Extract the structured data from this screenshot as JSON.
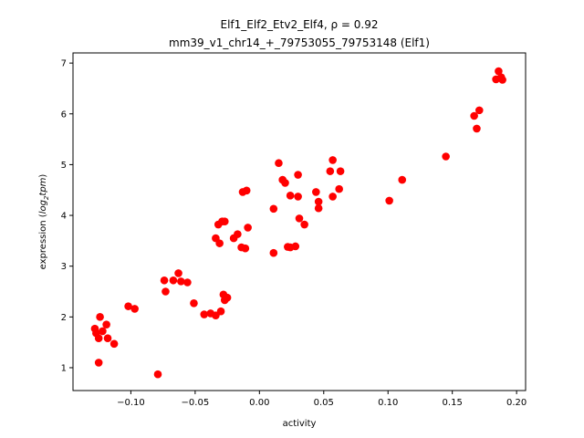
{
  "chart_data": {
    "type": "scatter",
    "title_line1": "Elf1_Elf2_Etv2_Elf4, ρ = 0.92",
    "title_line2": "mm39_v1_chr14_+_79753055_79753148 (Elf1)",
    "xlabel": "activity",
    "ylabel_prefix": "expression (",
    "ylabel_italic": "log",
    "ylabel_sub": "2",
    "ylabel_italic2": "tpm",
    "ylabel_suffix": ")",
    "xlim": [
      -0.145,
      0.207
    ],
    "ylim": [
      0.55,
      7.2
    ],
    "xticks": [
      -0.1,
      -0.05,
      0.0,
      0.05,
      0.1,
      0.15,
      0.2
    ],
    "xtick_labels": [
      "−0.10",
      "−0.05",
      "0.00",
      "0.05",
      "0.10",
      "0.15",
      "0.20"
    ],
    "yticks": [
      1,
      2,
      3,
      4,
      5,
      6,
      7
    ],
    "ytick_labels": [
      "1",
      "2",
      "3",
      "4",
      "5",
      "6",
      "7"
    ],
    "marker_color": "#ff0000",
    "grid": false,
    "points": [
      {
        "x": -0.128,
        "y": 1.77
      },
      {
        "x": -0.127,
        "y": 1.68
      },
      {
        "x": -0.125,
        "y": 1.58
      },
      {
        "x": -0.124,
        "y": 2.0
      },
      {
        "x": -0.122,
        "y": 1.72
      },
      {
        "x": -0.125,
        "y": 1.1
      },
      {
        "x": -0.119,
        "y": 1.85
      },
      {
        "x": -0.118,
        "y": 1.58
      },
      {
        "x": -0.113,
        "y": 1.47
      },
      {
        "x": -0.102,
        "y": 2.21
      },
      {
        "x": -0.097,
        "y": 2.16
      },
      {
        "x": -0.079,
        "y": 0.87
      },
      {
        "x": -0.074,
        "y": 2.72
      },
      {
        "x": -0.073,
        "y": 2.5
      },
      {
        "x": -0.067,
        "y": 2.72
      },
      {
        "x": -0.063,
        "y": 2.86
      },
      {
        "x": -0.061,
        "y": 2.7
      },
      {
        "x": -0.056,
        "y": 2.68
      },
      {
        "x": -0.051,
        "y": 2.27
      },
      {
        "x": -0.043,
        "y": 2.05
      },
      {
        "x": -0.038,
        "y": 2.07
      },
      {
        "x": -0.034,
        "y": 2.03
      },
      {
        "x": -0.03,
        "y": 2.11
      },
      {
        "x": -0.028,
        "y": 2.44
      },
      {
        "x": -0.027,
        "y": 2.33
      },
      {
        "x": -0.025,
        "y": 2.38
      },
      {
        "x": -0.034,
        "y": 3.55
      },
      {
        "x": -0.032,
        "y": 3.82
      },
      {
        "x": -0.031,
        "y": 3.45
      },
      {
        "x": -0.029,
        "y": 3.88
      },
      {
        "x": -0.027,
        "y": 3.88
      },
      {
        "x": -0.02,
        "y": 3.55
      },
      {
        "x": -0.017,
        "y": 3.63
      },
      {
        "x": -0.014,
        "y": 3.37
      },
      {
        "x": -0.011,
        "y": 3.35
      },
      {
        "x": -0.009,
        "y": 3.76
      },
      {
        "x": -0.013,
        "y": 4.46
      },
      {
        "x": -0.01,
        "y": 4.49
      },
      {
        "x": 0.011,
        "y": 4.13
      },
      {
        "x": 0.011,
        "y": 3.26
      },
      {
        "x": 0.015,
        "y": 5.03
      },
      {
        "x": 0.018,
        "y": 4.7
      },
      {
        "x": 0.02,
        "y": 4.64
      },
      {
        "x": 0.022,
        "y": 3.38
      },
      {
        "x": 0.024,
        "y": 3.37
      },
      {
        "x": 0.024,
        "y": 4.39
      },
      {
        "x": 0.028,
        "y": 3.39
      },
      {
        "x": 0.03,
        "y": 4.8
      },
      {
        "x": 0.03,
        "y": 4.37
      },
      {
        "x": 0.031,
        "y": 3.94
      },
      {
        "x": 0.035,
        "y": 3.82
      },
      {
        "x": 0.044,
        "y": 4.46
      },
      {
        "x": 0.046,
        "y": 4.27
      },
      {
        "x": 0.046,
        "y": 4.14
      },
      {
        "x": 0.055,
        "y": 4.87
      },
      {
        "x": 0.057,
        "y": 5.09
      },
      {
        "x": 0.057,
        "y": 4.37
      },
      {
        "x": 0.062,
        "y": 4.52
      },
      {
        "x": 0.063,
        "y": 4.87
      },
      {
        "x": 0.101,
        "y": 4.29
      },
      {
        "x": 0.111,
        "y": 4.7
      },
      {
        "x": 0.145,
        "y": 5.16
      },
      {
        "x": 0.167,
        "y": 5.96
      },
      {
        "x": 0.169,
        "y": 5.71
      },
      {
        "x": 0.171,
        "y": 6.07
      },
      {
        "x": 0.184,
        "y": 6.68
      },
      {
        "x": 0.186,
        "y": 6.84
      },
      {
        "x": 0.188,
        "y": 6.72
      },
      {
        "x": 0.189,
        "y": 6.67
      }
    ]
  }
}
